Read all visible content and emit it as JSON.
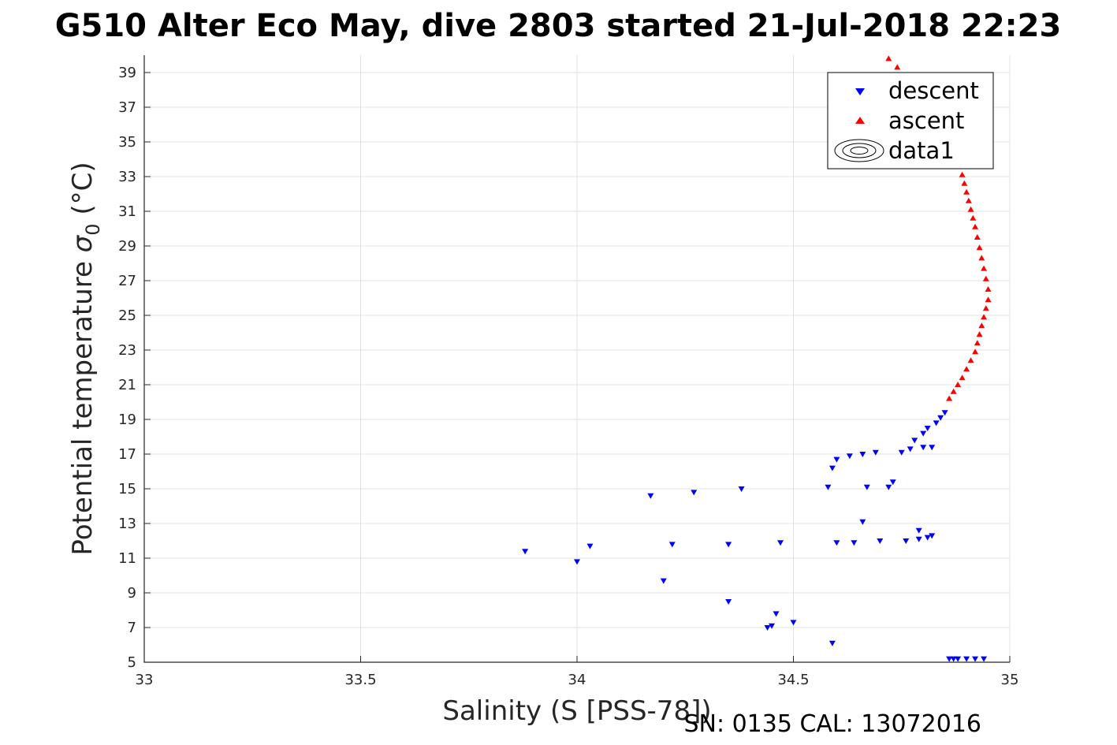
{
  "chart_data": {
    "type": "scatter",
    "title": "G510 Alter Eco May, dive 2803 started 21-Jul-2018 22:23",
    "xlabel": "Salinity (S [PSS-78])",
    "ylabel_text": "Potential temperature ",
    "ylabel_sigma": "σ",
    "ylabel_sub": "0",
    "ylabel_unit": " (°C)",
    "xlim": [
      33,
      35
    ],
    "ylim": [
      5,
      40
    ],
    "xticks": [
      "33",
      "33.5",
      "34",
      "34.5",
      "35"
    ],
    "yticks": [
      "5",
      "7",
      "9",
      "11",
      "13",
      "15",
      "17",
      "19",
      "21",
      "23",
      "25",
      "27",
      "29",
      "31",
      "33",
      "35",
      "37",
      "39"
    ],
    "grid": true,
    "legend_position": "top-right",
    "contour_levels": [
      "20",
      "20.5",
      "21",
      "21.5",
      "22",
      "22.5",
      "23",
      "23.5",
      "24",
      "24.5",
      "25",
      "25.5",
      "26",
      "26.5",
      "27",
      "27.5"
    ],
    "series": [
      {
        "name": "descent",
        "marker": "triangle-down",
        "color": "#0000ff",
        "x": [
          33.88,
          34.0,
          34.03,
          34.17,
          34.2,
          34.22,
          34.27,
          34.35,
          34.35,
          34.38,
          34.44,
          34.45,
          34.46,
          34.47,
          34.5,
          34.58,
          34.59,
          34.59,
          34.6,
          34.6,
          34.63,
          34.64,
          34.66,
          34.66,
          34.67,
          34.69,
          34.7,
          34.72,
          34.73,
          34.75,
          34.76,
          34.77,
          34.78,
          34.79,
          34.79,
          34.8,
          34.8,
          34.81,
          34.81,
          34.82,
          34.82,
          34.83,
          34.84,
          34.85,
          34.86,
          34.87,
          34.88,
          34.9,
          34.92,
          34.94
        ],
        "y": [
          11.4,
          10.8,
          11.7,
          14.6,
          9.7,
          11.8,
          14.8,
          11.8,
          8.5,
          15.0,
          7.0,
          7.1,
          7.8,
          11.9,
          7.3,
          15.1,
          6.1,
          16.2,
          16.7,
          11.9,
          16.9,
          11.9,
          17.0,
          13.1,
          15.1,
          17.1,
          12.0,
          15.1,
          15.4,
          17.1,
          12.0,
          17.3,
          17.8,
          12.1,
          12.6,
          17.4,
          18.2,
          12.2,
          18.5,
          17.4,
          12.3,
          18.8,
          19.1,
          19.4,
          5.2,
          5.2,
          5.2,
          5.2,
          5.2,
          5.2
        ]
      },
      {
        "name": "ascent",
        "marker": "triangle-up",
        "color": "#ff0000",
        "x": [
          34.86,
          34.87,
          34.88,
          34.89,
          34.9,
          34.91,
          34.92,
          34.925,
          34.93,
          34.935,
          34.94,
          34.945,
          34.95,
          34.95,
          34.945,
          34.94,
          34.935,
          34.93,
          34.925,
          34.92,
          34.915,
          34.91,
          34.905,
          34.9,
          34.895,
          34.89,
          34.885,
          34.88,
          34.87,
          34.86,
          34.85,
          34.84,
          34.82,
          34.8,
          34.78,
          34.76,
          34.74,
          34.72
        ],
        "y": [
          20.2,
          20.6,
          21.0,
          21.4,
          21.9,
          22.4,
          22.9,
          23.4,
          23.9,
          24.4,
          24.9,
          25.4,
          25.9,
          26.5,
          27.1,
          27.7,
          28.3,
          28.9,
          29.5,
          30.1,
          30.6,
          31.1,
          31.6,
          32.1,
          32.6,
          33.1,
          33.6,
          34.1,
          34.7,
          35.3,
          35.9,
          36.4,
          37.0,
          37.5,
          38.1,
          38.7,
          39.3,
          39.8
        ]
      },
      {
        "name": "data1",
        "marker": "contour",
        "color": "#000000"
      }
    ]
  },
  "footer": {
    "serial": "SN: 0135  CAL: 13072016"
  }
}
